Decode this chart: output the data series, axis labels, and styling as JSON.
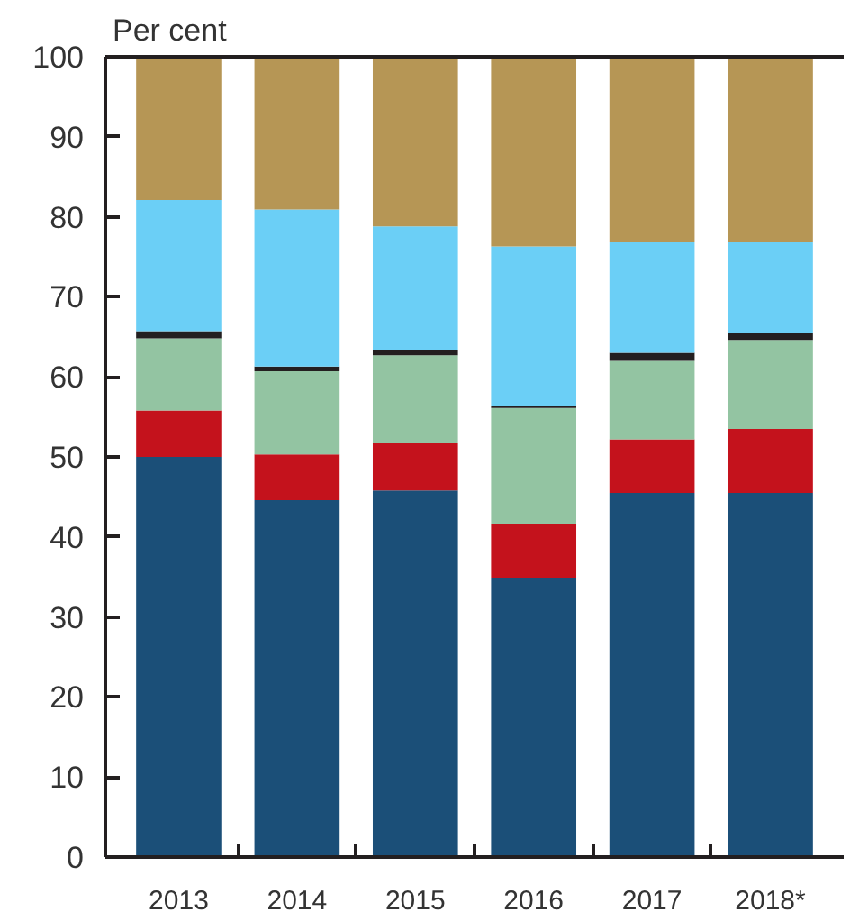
{
  "chart_data": {
    "type": "bar",
    "stacked": true,
    "ylabel": "Per cent",
    "categories": [
      "2013",
      "2014",
      "2015",
      "2016",
      "2017",
      "2018*"
    ],
    "ylim": [
      0,
      100
    ],
    "yticks": [
      0,
      10,
      20,
      30,
      40,
      50,
      60,
      70,
      80,
      90,
      100
    ],
    "grid": false,
    "series": [
      {
        "color": "#1b4f78",
        "values": [
          50,
          44.6,
          45.8,
          34.9,
          45.5,
          45.5
        ]
      },
      {
        "color": "#c4121c",
        "values": [
          5.8,
          5.7,
          5.9,
          6.7,
          6.7,
          8.0
        ]
      },
      {
        "color": "#93c4a2",
        "values": [
          9.0,
          10.4,
          11.0,
          14.5,
          9.8,
          11.1
        ]
      },
      {
        "color": "#231f20",
        "values": [
          0.9,
          0.6,
          0.7,
          0.3,
          1.0,
          0.9
        ]
      },
      {
        "color": "#6bcff6",
        "values": [
          16.4,
          19.6,
          15.4,
          19.9,
          13.8,
          11.3
        ]
      },
      {
        "color": "#b69655",
        "values": [
          17.9,
          19.1,
          21.2,
          23.7,
          23.2,
          23.2
        ]
      }
    ]
  }
}
